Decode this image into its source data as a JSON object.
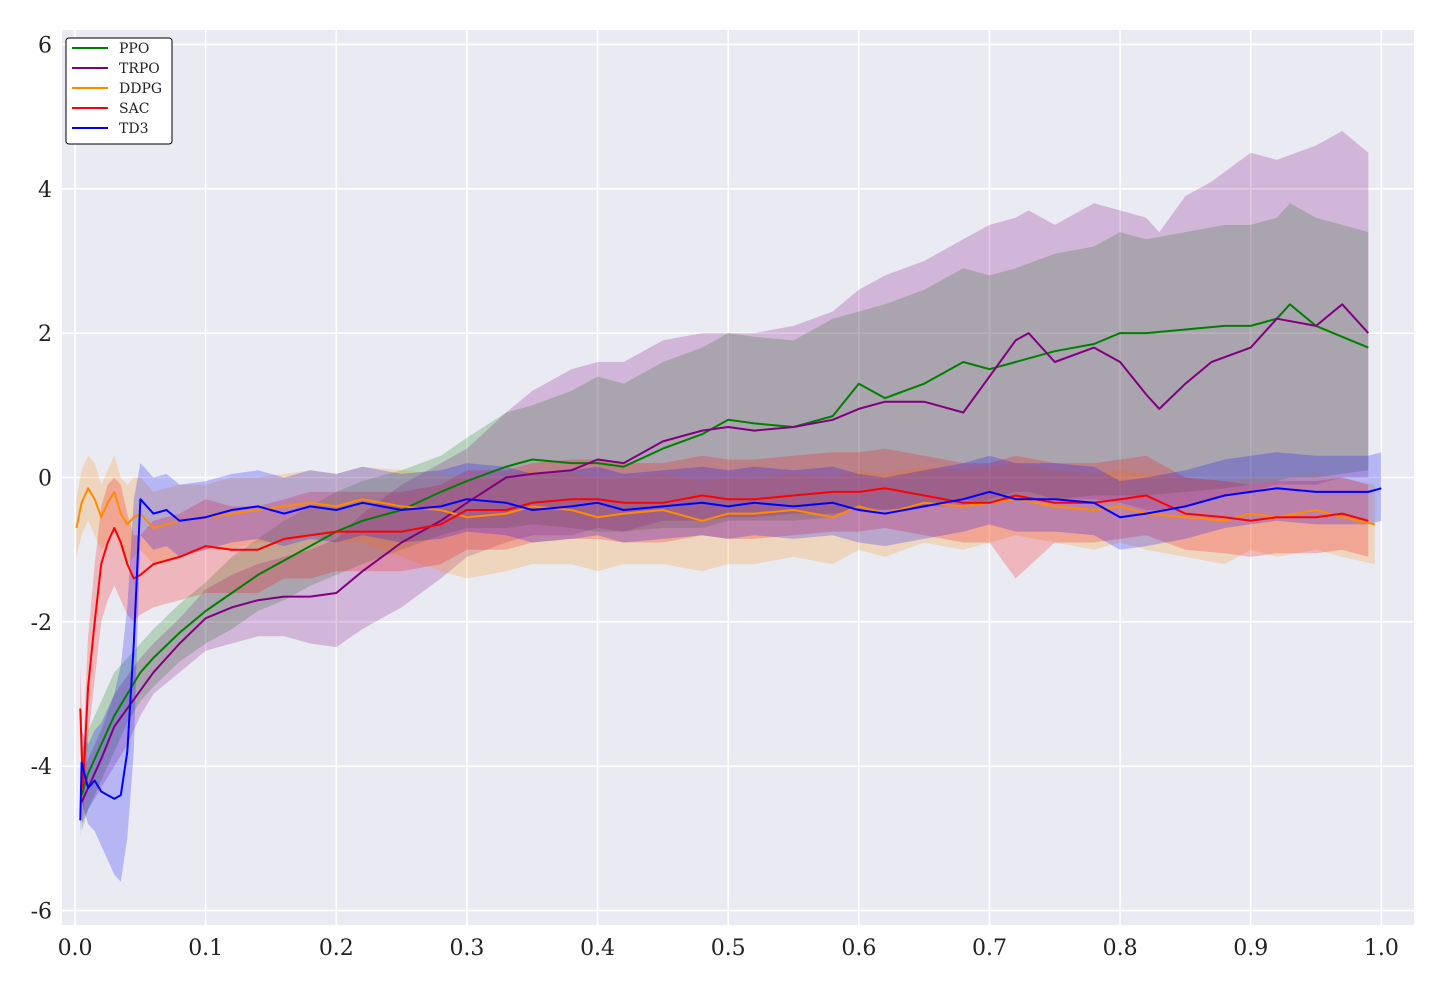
{
  "chart_data": {
    "type": "line",
    "title": "",
    "xlabel": "",
    "ylabel": "",
    "xlim": [
      -0.01,
      1.025
    ],
    "ylim": [
      -6.2,
      6.2
    ],
    "x_ticks": [
      0.0,
      0.1,
      0.2,
      0.3,
      0.4,
      0.5,
      0.6,
      0.7,
      0.8,
      0.9,
      1.0
    ],
    "x_tick_labels": [
      "0.0",
      "0.1",
      "0.2",
      "0.3",
      "0.4",
      "0.5",
      "0.6",
      "0.7",
      "0.8",
      "0.9",
      "1.0"
    ],
    "y_ticks": [
      -6,
      -4,
      -2,
      0,
      2,
      4,
      6
    ],
    "y_tick_labels": [
      "-6",
      "-4",
      "-2",
      "0",
      "2",
      "4",
      "6"
    ],
    "grid": true,
    "legend_position": "top-left",
    "background_color": "#eaeaf2",
    "series": [
      {
        "name": "PPO",
        "color": "#008000",
        "x": [
          0.005,
          0.01,
          0.02,
          0.03,
          0.04,
          0.05,
          0.06,
          0.08,
          0.1,
          0.12,
          0.14,
          0.16,
          0.18,
          0.2,
          0.22,
          0.25,
          0.28,
          0.3,
          0.33,
          0.35,
          0.38,
          0.4,
          0.42,
          0.45,
          0.48,
          0.5,
          0.52,
          0.55,
          0.58,
          0.6,
          0.62,
          0.65,
          0.68,
          0.7,
          0.72,
          0.75,
          0.78,
          0.8,
          0.82,
          0.85,
          0.88,
          0.9,
          0.92,
          0.93,
          0.95,
          0.97,
          0.99
        ],
        "y": [
          -4.4,
          -4.1,
          -3.7,
          -3.3,
          -3.0,
          -2.7,
          -2.5,
          -2.15,
          -1.85,
          -1.6,
          -1.35,
          -1.15,
          -0.95,
          -0.75,
          -0.6,
          -0.45,
          -0.2,
          -0.05,
          0.15,
          0.25,
          0.2,
          0.2,
          0.15,
          0.4,
          0.6,
          0.8,
          0.75,
          0.7,
          0.85,
          1.3,
          1.1,
          1.3,
          1.6,
          1.5,
          1.6,
          1.75,
          1.85,
          2.0,
          2.0,
          2.05,
          2.1,
          2.1,
          2.2,
          2.4,
          2.1,
          1.95,
          1.8
        ],
        "band_lower": [
          -4.9,
          -4.6,
          -4.2,
          -3.8,
          -3.4,
          -3.1,
          -2.9,
          -2.55,
          -2.3,
          -2.1,
          -1.85,
          -1.7,
          -1.5,
          -1.35,
          -1.2,
          -1.0,
          -0.8,
          -0.7,
          -0.7,
          -0.65,
          -0.7,
          -0.75,
          -0.75,
          -0.7,
          -0.7,
          -0.6,
          -0.6,
          -0.6,
          -0.55,
          -0.4,
          -0.45,
          -0.4,
          -0.3,
          -0.35,
          -0.3,
          -0.3,
          -0.25,
          -0.25,
          -0.25,
          -0.2,
          -0.15,
          -0.1,
          -0.05,
          0.0,
          0.0,
          0.05,
          0.1
        ],
        "band_upper": [
          -3.8,
          -3.5,
          -3.1,
          -2.7,
          -2.5,
          -2.3,
          -2.1,
          -1.75,
          -1.45,
          -1.1,
          -0.85,
          -0.6,
          -0.4,
          -0.2,
          -0.05,
          0.1,
          0.3,
          0.55,
          0.9,
          1.0,
          1.2,
          1.4,
          1.3,
          1.6,
          1.8,
          2.0,
          1.95,
          1.9,
          2.2,
          2.3,
          2.4,
          2.6,
          2.9,
          2.8,
          2.9,
          3.1,
          3.2,
          3.4,
          3.3,
          3.4,
          3.5,
          3.5,
          3.6,
          3.8,
          3.6,
          3.5,
          3.4
        ]
      },
      {
        "name": "TRPO",
        "color": "#800080",
        "x": [
          0.005,
          0.01,
          0.02,
          0.03,
          0.04,
          0.05,
          0.06,
          0.08,
          0.1,
          0.12,
          0.14,
          0.16,
          0.18,
          0.2,
          0.22,
          0.25,
          0.28,
          0.3,
          0.33,
          0.35,
          0.38,
          0.4,
          0.42,
          0.45,
          0.48,
          0.5,
          0.52,
          0.55,
          0.58,
          0.6,
          0.62,
          0.65,
          0.68,
          0.7,
          0.72,
          0.73,
          0.75,
          0.78,
          0.8,
          0.82,
          0.83,
          0.85,
          0.87,
          0.9,
          0.92,
          0.95,
          0.97,
          0.99
        ],
        "y": [
          -4.5,
          -4.3,
          -3.9,
          -3.45,
          -3.2,
          -2.95,
          -2.7,
          -2.3,
          -1.95,
          -1.8,
          -1.7,
          -1.65,
          -1.65,
          -1.6,
          -1.3,
          -0.9,
          -0.6,
          -0.35,
          0.0,
          0.05,
          0.1,
          0.25,
          0.2,
          0.5,
          0.65,
          0.7,
          0.65,
          0.7,
          0.8,
          0.95,
          1.05,
          1.05,
          0.9,
          1.4,
          1.9,
          2.0,
          1.6,
          1.8,
          1.6,
          1.15,
          0.95,
          1.3,
          1.6,
          1.8,
          2.2,
          2.1,
          2.4,
          2.0
        ],
        "band_lower": [
          -4.8,
          -4.6,
          -4.3,
          -4.0,
          -3.7,
          -3.3,
          -3.0,
          -2.7,
          -2.4,
          -2.3,
          -2.2,
          -2.2,
          -2.3,
          -2.35,
          -2.1,
          -1.8,
          -1.4,
          -1.1,
          -0.9,
          -0.8,
          -0.8,
          -0.7,
          -0.75,
          -0.6,
          -0.6,
          -0.55,
          -0.55,
          -0.5,
          -0.5,
          -0.45,
          -0.45,
          -0.4,
          -0.4,
          -0.3,
          -0.2,
          -0.2,
          -0.3,
          -0.3,
          -0.35,
          -0.45,
          -0.45,
          -0.4,
          -0.3,
          -0.2,
          -0.1,
          -0.1,
          0.0,
          0.0
        ],
        "band_upper": [
          -4.1,
          -3.9,
          -3.5,
          -3.0,
          -2.75,
          -2.5,
          -2.3,
          -1.95,
          -1.55,
          -1.35,
          -1.2,
          -1.1,
          -1.0,
          -0.85,
          -0.5,
          -0.1,
          0.2,
          0.4,
          0.9,
          1.2,
          1.5,
          1.6,
          1.6,
          1.9,
          2.0,
          2.0,
          2.0,
          2.1,
          2.3,
          2.6,
          2.8,
          3.0,
          3.3,
          3.5,
          3.6,
          3.7,
          3.5,
          3.8,
          3.7,
          3.6,
          3.4,
          3.9,
          4.1,
          4.5,
          4.4,
          4.6,
          4.8,
          4.5
        ]
      },
      {
        "name": "DDPG",
        "color": "#ff8c00",
        "x": [
          0.001,
          0.005,
          0.01,
          0.015,
          0.02,
          0.025,
          0.03,
          0.035,
          0.04,
          0.045,
          0.05,
          0.06,
          0.08,
          0.1,
          0.12,
          0.14,
          0.16,
          0.18,
          0.2,
          0.22,
          0.25,
          0.28,
          0.3,
          0.33,
          0.35,
          0.38,
          0.4,
          0.42,
          0.45,
          0.48,
          0.5,
          0.52,
          0.55,
          0.58,
          0.6,
          0.62,
          0.65,
          0.68,
          0.7,
          0.72,
          0.75,
          0.78,
          0.8,
          0.82,
          0.85,
          0.88,
          0.9,
          0.92,
          0.95,
          0.97,
          0.995
        ],
        "y": [
          -0.7,
          -0.35,
          -0.15,
          -0.3,
          -0.55,
          -0.35,
          -0.2,
          -0.5,
          -0.65,
          -0.55,
          -0.5,
          -0.7,
          -0.6,
          -0.55,
          -0.5,
          -0.45,
          -0.4,
          -0.35,
          -0.4,
          -0.3,
          -0.4,
          -0.45,
          -0.55,
          -0.5,
          -0.4,
          -0.45,
          -0.55,
          -0.5,
          -0.45,
          -0.6,
          -0.5,
          -0.5,
          -0.45,
          -0.55,
          -0.4,
          -0.5,
          -0.35,
          -0.4,
          -0.35,
          -0.3,
          -0.4,
          -0.45,
          -0.4,
          -0.5,
          -0.55,
          -0.6,
          -0.5,
          -0.55,
          -0.45,
          -0.55,
          -0.65
        ],
        "band_lower": [
          -1.1,
          -0.8,
          -0.6,
          -0.8,
          -1.0,
          -0.9,
          -0.7,
          -1.0,
          -1.2,
          -1.1,
          -1.0,
          -1.2,
          -1.1,
          -1.0,
          -1.0,
          -0.9,
          -0.9,
          -0.8,
          -0.9,
          -0.9,
          -1.1,
          -1.3,
          -1.4,
          -1.3,
          -1.2,
          -1.2,
          -1.3,
          -1.2,
          -1.2,
          -1.3,
          -1.2,
          -1.2,
          -1.1,
          -1.2,
          -1.0,
          -1.1,
          -0.9,
          -1.0,
          -0.9,
          -0.8,
          -0.9,
          -1.0,
          -0.9,
          -1.0,
          -1.1,
          -1.2,
          -1.0,
          -1.1,
          -1.0,
          -1.1,
          -1.2
        ],
        "band_upper": [
          -0.3,
          0.1,
          0.3,
          0.2,
          -0.1,
          0.1,
          0.3,
          0.0,
          -0.1,
          0.0,
          0.0,
          -0.2,
          -0.1,
          -0.1,
          0.0,
          0.0,
          0.05,
          0.1,
          0.05,
          0.15,
          0.1,
          0.05,
          0.0,
          0.0,
          0.1,
          0.05,
          0.0,
          0.0,
          0.05,
          -0.05,
          0.0,
          0.0,
          0.05,
          0.0,
          0.1,
          0.05,
          0.15,
          0.1,
          0.15,
          0.2,
          0.1,
          0.05,
          0.1,
          0.05,
          0.0,
          -0.05,
          0.0,
          0.0,
          0.05,
          0.0,
          -0.1
        ]
      },
      {
        "name": "SAC",
        "color": "#ff0000",
        "x": [
          0.004,
          0.006,
          0.01,
          0.015,
          0.02,
          0.025,
          0.03,
          0.035,
          0.04,
          0.045,
          0.05,
          0.06,
          0.08,
          0.1,
          0.12,
          0.14,
          0.16,
          0.18,
          0.2,
          0.22,
          0.25,
          0.28,
          0.3,
          0.33,
          0.35,
          0.38,
          0.4,
          0.42,
          0.45,
          0.48,
          0.5,
          0.52,
          0.55,
          0.58,
          0.6,
          0.62,
          0.65,
          0.68,
          0.7,
          0.72,
          0.75,
          0.78,
          0.8,
          0.82,
          0.85,
          0.88,
          0.9,
          0.92,
          0.95,
          0.97,
          0.99
        ],
        "y": [
          -3.2,
          -4.3,
          -2.9,
          -2.0,
          -1.2,
          -0.9,
          -0.7,
          -0.9,
          -1.2,
          -1.4,
          -1.35,
          -1.2,
          -1.1,
          -0.95,
          -1.0,
          -1.0,
          -0.85,
          -0.8,
          -0.75,
          -0.75,
          -0.75,
          -0.65,
          -0.45,
          -0.45,
          -0.35,
          -0.3,
          -0.3,
          -0.35,
          -0.35,
          -0.25,
          -0.3,
          -0.3,
          -0.25,
          -0.2,
          -0.2,
          -0.15,
          -0.25,
          -0.35,
          -0.35,
          -0.25,
          -0.35,
          -0.35,
          -0.3,
          -0.25,
          -0.5,
          -0.55,
          -0.6,
          -0.55,
          -0.55,
          -0.5,
          -0.6
        ],
        "band_lower": [
          -3.8,
          -4.8,
          -3.6,
          -2.8,
          -2.0,
          -1.7,
          -1.5,
          -1.7,
          -1.9,
          -2.0,
          -1.9,
          -1.8,
          -1.7,
          -1.6,
          -1.6,
          -1.6,
          -1.4,
          -1.4,
          -1.3,
          -1.3,
          -1.3,
          -1.2,
          -1.0,
          -1.0,
          -0.9,
          -0.85,
          -0.85,
          -0.9,
          -0.9,
          -0.8,
          -0.85,
          -0.85,
          -0.8,
          -0.75,
          -0.75,
          -0.7,
          -0.8,
          -0.9,
          -0.9,
          -1.4,
          -0.9,
          -0.9,
          -0.85,
          -0.8,
          -1.0,
          -1.05,
          -1.1,
          -1.05,
          -1.05,
          -1.0,
          -1.1
        ],
        "band_upper": [
          -2.6,
          -3.8,
          -2.2,
          -1.2,
          -0.4,
          -0.1,
          0.0,
          -0.1,
          -0.5,
          -0.8,
          -0.8,
          -0.6,
          -0.5,
          -0.3,
          -0.4,
          -0.4,
          -0.3,
          -0.2,
          -0.2,
          -0.2,
          -0.2,
          -0.1,
          0.1,
          0.1,
          0.2,
          0.25,
          0.25,
          0.2,
          0.2,
          0.3,
          0.25,
          0.25,
          0.3,
          0.35,
          0.35,
          0.4,
          0.3,
          0.2,
          0.2,
          0.3,
          0.2,
          0.2,
          0.25,
          0.3,
          0.0,
          -0.05,
          -0.1,
          -0.05,
          -0.05,
          0.0,
          -0.1
        ]
      },
      {
        "name": "TD3",
        "color": "#0000ff",
        "x": [
          0.004,
          0.005,
          0.01,
          0.015,
          0.02,
          0.025,
          0.03,
          0.035,
          0.04,
          0.045,
          0.05,
          0.055,
          0.06,
          0.07,
          0.08,
          0.1,
          0.12,
          0.14,
          0.16,
          0.18,
          0.2,
          0.22,
          0.25,
          0.28,
          0.3,
          0.33,
          0.35,
          0.38,
          0.4,
          0.42,
          0.45,
          0.48,
          0.5,
          0.52,
          0.55,
          0.58,
          0.6,
          0.62,
          0.65,
          0.68,
          0.7,
          0.72,
          0.75,
          0.78,
          0.8,
          0.82,
          0.85,
          0.88,
          0.9,
          0.92,
          0.95,
          0.97,
          0.99,
          1.0
        ],
        "y": [
          -4.75,
          -3.95,
          -4.3,
          -4.2,
          -4.35,
          -4.4,
          -4.45,
          -4.4,
          -3.8,
          -2.3,
          -0.3,
          -0.4,
          -0.5,
          -0.45,
          -0.6,
          -0.55,
          -0.45,
          -0.4,
          -0.5,
          -0.4,
          -0.45,
          -0.35,
          -0.45,
          -0.4,
          -0.3,
          -0.35,
          -0.45,
          -0.4,
          -0.35,
          -0.45,
          -0.4,
          -0.35,
          -0.4,
          -0.35,
          -0.4,
          -0.35,
          -0.45,
          -0.5,
          -0.4,
          -0.3,
          -0.2,
          -0.3,
          -0.3,
          -0.35,
          -0.55,
          -0.5,
          -0.4,
          -0.25,
          -0.2,
          -0.15,
          -0.2,
          -0.2,
          -0.2,
          -0.15
        ],
        "band_lower": [
          -5.0,
          -4.5,
          -4.8,
          -4.9,
          -5.1,
          -5.3,
          -5.5,
          -5.6,
          -5.0,
          -3.8,
          -0.8,
          -0.9,
          -1.0,
          -0.95,
          -1.1,
          -1.0,
          -0.9,
          -0.85,
          -0.95,
          -0.85,
          -0.9,
          -0.8,
          -0.9,
          -0.85,
          -0.75,
          -0.8,
          -0.9,
          -0.85,
          -0.8,
          -0.9,
          -0.85,
          -0.8,
          -0.85,
          -0.8,
          -0.85,
          -0.8,
          -0.9,
          -0.95,
          -0.85,
          -0.75,
          -0.65,
          -0.75,
          -0.75,
          -0.8,
          -1.0,
          -0.95,
          -0.85,
          -0.7,
          -0.65,
          -0.6,
          -0.65,
          -0.65,
          -0.65,
          -0.6
        ],
        "band_upper": [
          -4.4,
          -3.5,
          -3.7,
          -3.5,
          -3.4,
          -3.2,
          -3.0,
          -2.6,
          -1.8,
          -0.3,
          0.2,
          0.1,
          0.0,
          0.05,
          -0.1,
          -0.05,
          0.05,
          0.1,
          0.0,
          0.1,
          0.05,
          0.15,
          0.05,
          0.1,
          0.2,
          0.15,
          0.05,
          0.1,
          0.15,
          0.05,
          0.1,
          0.15,
          0.1,
          0.15,
          0.1,
          0.15,
          0.05,
          0.0,
          0.1,
          0.2,
          0.3,
          0.2,
          0.2,
          0.15,
          -0.05,
          0.0,
          0.1,
          0.25,
          0.3,
          0.35,
          0.3,
          0.3,
          0.3,
          0.35
        ]
      }
    ]
  }
}
